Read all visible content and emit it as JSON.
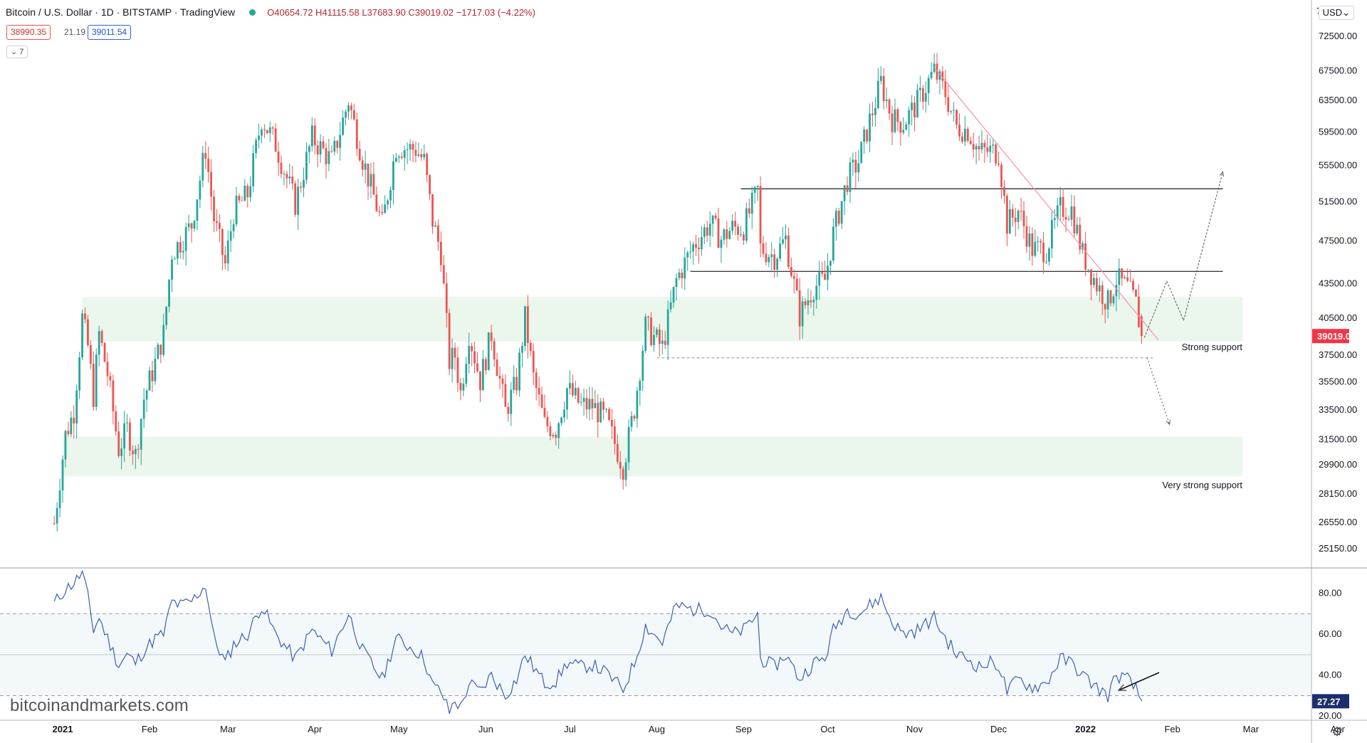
{
  "header": {
    "symbol": "Bitcoin / U.S. Dollar · 1D · BITSTAMP · TradingView",
    "ohlc": "O40654.72 H41115.58 L37683.90 C39019.02 −1717.03 (−4.22%)",
    "bid": "38990.35",
    "spread": "21.19",
    "ask": "39011.54",
    "indicator_toggle": "⌄ 7",
    "currency": "USD⌄",
    "top_cut_label": "7"
  },
  "watermark": "bitcoinandmarkets.com",
  "colors": {
    "up": "#26a69a",
    "down": "#ef5350",
    "rsi_line": "#3c5fb1",
    "support_zone": "#e8f5e9",
    "trendline": "#f48fb1",
    "price_badge": "#f23645",
    "rsi_badge": "#1c2e6b"
  },
  "chart_data": [
    {
      "type": "candlestick",
      "title": "Bitcoin / U.S. Dollar · 1D · BITSTAMP",
      "price_scale": "log",
      "ylim": [
        24200,
        77000
      ],
      "y_ticks": [
        72500,
        67500,
        63500,
        59500,
        55500,
        51500,
        47500,
        43500,
        40500,
        37500,
        35500,
        33500,
        31500,
        29900,
        28150,
        26550,
        25150
      ],
      "y_tick_labels": [
        "72500.00",
        "67500.00",
        "63500.00",
        "59500.00",
        "55500.00",
        "51500.00",
        "47500.00",
        "43500.00",
        "40500.00",
        "37500.00",
        "35500.00",
        "33500.00",
        "31500.00",
        "29900.00",
        "28150.00",
        "26550.00",
        "25150.00"
      ],
      "x_labels": [
        {
          "label": "2021",
          "date": "2021-01-01",
          "bold": true
        },
        {
          "label": "Feb",
          "date": "2021-02-01"
        },
        {
          "label": "Mar",
          "date": "2021-03-01"
        },
        {
          "label": "Apr",
          "date": "2021-04-01"
        },
        {
          "label": "May",
          "date": "2021-05-01"
        },
        {
          "label": "Jun",
          "date": "2021-06-01"
        },
        {
          "label": "Jul",
          "date": "2021-07-01"
        },
        {
          "label": "Aug",
          "date": "2021-08-01"
        },
        {
          "label": "Sep",
          "date": "2021-09-01"
        },
        {
          "label": "Oct",
          "date": "2021-10-01"
        },
        {
          "label": "Nov",
          "date": "2021-11-01"
        },
        {
          "label": "Dec",
          "date": "2021-12-01"
        },
        {
          "label": "2022",
          "date": "2022-01-01",
          "bold": true
        },
        {
          "label": "Feb",
          "date": "2022-02-01"
        },
        {
          "label": "Mar",
          "date": "2022-03-01"
        },
        {
          "label": "Apr",
          "date": "2022-04-01"
        }
      ],
      "last_price": {
        "value": 39019.02,
        "label": "39019.02"
      },
      "close_path": [
        [
          "2020-12-29",
          26500
        ],
        [
          "2021-01-02",
          31800
        ],
        [
          "2021-01-05",
          33400
        ],
        [
          "2021-01-08",
          40500
        ],
        [
          "2021-01-10",
          38200
        ],
        [
          "2021-01-12",
          34500
        ],
        [
          "2021-01-14",
          39200
        ],
        [
          "2021-01-17",
          36100
        ],
        [
          "2021-01-21",
          30900
        ],
        [
          "2021-01-24",
          32200
        ],
        [
          "2021-01-27",
          30500
        ],
        [
          "2021-01-30",
          34300
        ],
        [
          "2021-02-03",
          36900
        ],
        [
          "2021-02-06",
          39200
        ],
        [
          "2021-02-09",
          46400
        ],
        [
          "2021-02-12",
          47400
        ],
        [
          "2021-02-16",
          49100
        ],
        [
          "2021-02-21",
          57500
        ],
        [
          "2021-02-24",
          49700
        ],
        [
          "2021-02-28",
          45200
        ],
        [
          "2021-03-03",
          50400
        ],
        [
          "2021-03-08",
          52300
        ],
        [
          "2021-03-13",
          61200
        ],
        [
          "2021-03-18",
          58000
        ],
        [
          "2021-03-25",
          51300
        ],
        [
          "2021-03-31",
          58800
        ],
        [
          "2021-04-07",
          56000
        ],
        [
          "2021-04-13",
          63500
        ],
        [
          "2021-04-18",
          56300
        ],
        [
          "2021-04-25",
          49100
        ],
        [
          "2021-04-30",
          57700
        ],
        [
          "2021-05-07",
          57400
        ],
        [
          "2021-05-10",
          56000
        ],
        [
          "2021-05-13",
          49500
        ],
        [
          "2021-05-16",
          46400
        ],
        [
          "2021-05-19",
          37000
        ],
        [
          "2021-05-21",
          37500
        ],
        [
          "2021-05-23",
          34700
        ],
        [
          "2021-05-26",
          39300
        ],
        [
          "2021-05-30",
          35600
        ],
        [
          "2021-06-03",
          39200
        ],
        [
          "2021-06-08",
          33400
        ],
        [
          "2021-06-12",
          35500
        ],
        [
          "2021-06-15",
          40500
        ],
        [
          "2021-06-18",
          35800
        ],
        [
          "2021-06-22",
          32500
        ],
        [
          "2021-06-26",
          32200
        ],
        [
          "2021-06-30",
          35000
        ],
        [
          "2021-07-05",
          33800
        ],
        [
          "2021-07-09",
          33800
        ],
        [
          "2021-07-14",
          32800
        ],
        [
          "2021-07-20",
          29800
        ],
        [
          "2021-07-24",
          33600
        ],
        [
          "2021-07-28",
          39800
        ],
        [
          "2021-08-03",
          38100
        ],
        [
          "2021-08-08",
          43800
        ],
        [
          "2021-08-14",
          47000
        ],
        [
          "2021-08-20",
          49300
        ],
        [
          "2021-08-24",
          47700
        ],
        [
          "2021-08-28",
          48800
        ],
        [
          "2021-09-01",
          48800
        ],
        [
          "2021-09-06",
          52700
        ],
        [
          "2021-09-07",
          46800
        ],
        [
          "2021-09-12",
          46000
        ],
        [
          "2021-09-16",
          47700
        ],
        [
          "2021-09-21",
          40700
        ],
        [
          "2021-09-26",
          43200
        ],
        [
          "2021-09-30",
          43800
        ],
        [
          "2021-10-03",
          48200
        ],
        [
          "2021-10-08",
          53900
        ],
        [
          "2021-10-12",
          56000
        ],
        [
          "2021-10-16",
          60900
        ],
        [
          "2021-10-20",
          65900
        ],
        [
          "2021-10-24",
          61100
        ],
        [
          "2021-10-28",
          60600
        ],
        [
          "2021-11-02",
          63200
        ],
        [
          "2021-11-08",
          67500
        ],
        [
          "2021-11-12",
          64400
        ],
        [
          "2021-11-16",
          60100
        ],
        [
          "2021-11-20",
          59700
        ],
        [
          "2021-11-24",
          57100
        ],
        [
          "2021-11-28",
          57200
        ],
        [
          "2021-12-01",
          57000
        ],
        [
          "2021-12-04",
          49200
        ],
        [
          "2021-12-08",
          50600
        ],
        [
          "2021-12-13",
          46700
        ],
        [
          "2021-12-18",
          46700
        ],
        [
          "2021-12-23",
          50800
        ],
        [
          "2021-12-27",
          50700
        ],
        [
          "2021-12-31",
          46200
        ],
        [
          "2022-01-05",
          43400
        ],
        [
          "2022-01-09",
          41800
        ],
        [
          "2022-01-12",
          43900
        ],
        [
          "2022-01-16",
          43100
        ],
        [
          "2022-01-19",
          41700
        ],
        [
          "2022-01-21",
          39019
        ]
      ],
      "support_zones": [
        {
          "label": "Strong support",
          "from": 38600,
          "to": 42300,
          "x_from": "2021-01-08",
          "x_to": "2022-02-26"
        },
        {
          "label": "Very strong support",
          "from": 29200,
          "to": 31700,
          "x_from": "2021-01-01",
          "x_to": "2022-02-26"
        }
      ],
      "horizontal_levels": [
        {
          "value": 52900,
          "x_from": "2021-08-31",
          "x_to": "2022-02-19"
        },
        {
          "value": 44600,
          "x_from": "2021-08-13",
          "x_to": "2022-02-19"
        },
        {
          "value": 37300,
          "x_from": "2021-08-01",
          "x_to": "2022-01-25",
          "style": "dashed"
        }
      ],
      "trendline": {
        "from": [
          "2021-11-08",
          68000
        ],
        "to": [
          "2022-01-27",
          38700
        ]
      },
      "projections": [
        {
          "style": "solid",
          "points": [
            [
              "2022-01-22",
              38900
            ],
            [
              "2022-01-30",
              43700
            ],
            [
              "2022-02-05",
              40300
            ],
            [
              "2022-02-19",
              54800
            ]
          ]
        },
        {
          "style": "dotted",
          "points": [
            [
              "2022-01-23",
              37300
            ],
            [
              "2022-01-31",
              32500
            ]
          ]
        }
      ],
      "annotations": [
        {
          "text": "Strong support",
          "date": "2022-02-26",
          "value": 37900
        },
        {
          "text": "Very strong support",
          "date": "2022-02-26",
          "value": 28500
        }
      ]
    },
    {
      "type": "line",
      "title": "RSI",
      "ylim": [
        18,
        92
      ],
      "y_ticks": [
        80,
        60,
        40,
        20
      ],
      "y_tick_labels": [
        "80.00",
        "60.00",
        "40.00",
        "20.00"
      ],
      "bands": {
        "upper": 70,
        "mid": 50,
        "lower": 30
      },
      "last_value": {
        "value": 27.27,
        "label": "27.27"
      },
      "path": [
        [
          "2020-12-29",
          75
        ],
        [
          "2021-01-02",
          82
        ],
        [
          "2021-01-05",
          85
        ],
        [
          "2021-01-08",
          90
        ],
        [
          "2021-01-10",
          78
        ],
        [
          "2021-01-12",
          62
        ],
        [
          "2021-01-14",
          68
        ],
        [
          "2021-01-17",
          58
        ],
        [
          "2021-01-21",
          45
        ],
        [
          "2021-01-24",
          50
        ],
        [
          "2021-01-27",
          46
        ],
        [
          "2021-01-30",
          52
        ],
        [
          "2021-02-03",
          58
        ],
        [
          "2021-02-06",
          60
        ],
        [
          "2021-02-09",
          76
        ],
        [
          "2021-02-12",
          74
        ],
        [
          "2021-02-16",
          76
        ],
        [
          "2021-02-21",
          84
        ],
        [
          "2021-02-24",
          58
        ],
        [
          "2021-02-28",
          46
        ],
        [
          "2021-03-03",
          55
        ],
        [
          "2021-03-08",
          60
        ],
        [
          "2021-03-13",
          74
        ],
        [
          "2021-03-18",
          60
        ],
        [
          "2021-03-25",
          48
        ],
        [
          "2021-03-31",
          62
        ],
        [
          "2021-04-07",
          52
        ],
        [
          "2021-04-13",
          70
        ],
        [
          "2021-04-18",
          52
        ],
        [
          "2021-04-25",
          38
        ],
        [
          "2021-04-30",
          58
        ],
        [
          "2021-05-07",
          52
        ],
        [
          "2021-05-10",
          48
        ],
        [
          "2021-05-13",
          35
        ],
        [
          "2021-05-16",
          32
        ],
        [
          "2021-05-19",
          22
        ],
        [
          "2021-05-21",
          28
        ],
        [
          "2021-05-23",
          24
        ],
        [
          "2021-05-26",
          36
        ],
        [
          "2021-05-30",
          32
        ],
        [
          "2021-06-03",
          40
        ],
        [
          "2021-06-08",
          30
        ],
        [
          "2021-06-12",
          38
        ],
        [
          "2021-06-15",
          50
        ],
        [
          "2021-06-18",
          44
        ],
        [
          "2021-06-22",
          36
        ],
        [
          "2021-06-26",
          37
        ],
        [
          "2021-06-30",
          46
        ],
        [
          "2021-07-05",
          44
        ],
        [
          "2021-07-09",
          45
        ],
        [
          "2021-07-14",
          41
        ],
        [
          "2021-07-20",
          33
        ],
        [
          "2021-07-24",
          46
        ],
        [
          "2021-07-28",
          64
        ],
        [
          "2021-08-03",
          56
        ],
        [
          "2021-08-08",
          74
        ],
        [
          "2021-08-14",
          72
        ],
        [
          "2021-08-20",
          72
        ],
        [
          "2021-08-24",
          64
        ],
        [
          "2021-08-28",
          60
        ],
        [
          "2021-09-01",
          62
        ],
        [
          "2021-09-06",
          70
        ],
        [
          "2021-09-07",
          48
        ],
        [
          "2021-09-12",
          44
        ],
        [
          "2021-09-16",
          50
        ],
        [
          "2021-09-21",
          38
        ],
        [
          "2021-09-26",
          46
        ],
        [
          "2021-09-30",
          48
        ],
        [
          "2021-10-03",
          62
        ],
        [
          "2021-10-08",
          72
        ],
        [
          "2021-10-12",
          70
        ],
        [
          "2021-10-16",
          74
        ],
        [
          "2021-10-20",
          78
        ],
        [
          "2021-10-24",
          66
        ],
        [
          "2021-10-28",
          60
        ],
        [
          "2021-11-02",
          62
        ],
        [
          "2021-11-08",
          68
        ],
        [
          "2021-11-12",
          58
        ],
        [
          "2021-11-16",
          50
        ],
        [
          "2021-11-20",
          48
        ],
        [
          "2021-11-24",
          44
        ],
        [
          "2021-11-28",
          46
        ],
        [
          "2021-12-01",
          45
        ],
        [
          "2021-12-04",
          32
        ],
        [
          "2021-12-08",
          38
        ],
        [
          "2021-12-13",
          34
        ],
        [
          "2021-12-18",
          36
        ],
        [
          "2021-12-23",
          48
        ],
        [
          "2021-12-27",
          46
        ],
        [
          "2021-12-31",
          40
        ],
        [
          "2022-01-05",
          34
        ],
        [
          "2022-01-09",
          30
        ],
        [
          "2022-01-12",
          40
        ],
        [
          "2022-01-16",
          38
        ],
        [
          "2022-01-19",
          33
        ],
        [
          "2022-01-21",
          27.27
        ]
      ]
    }
  ]
}
